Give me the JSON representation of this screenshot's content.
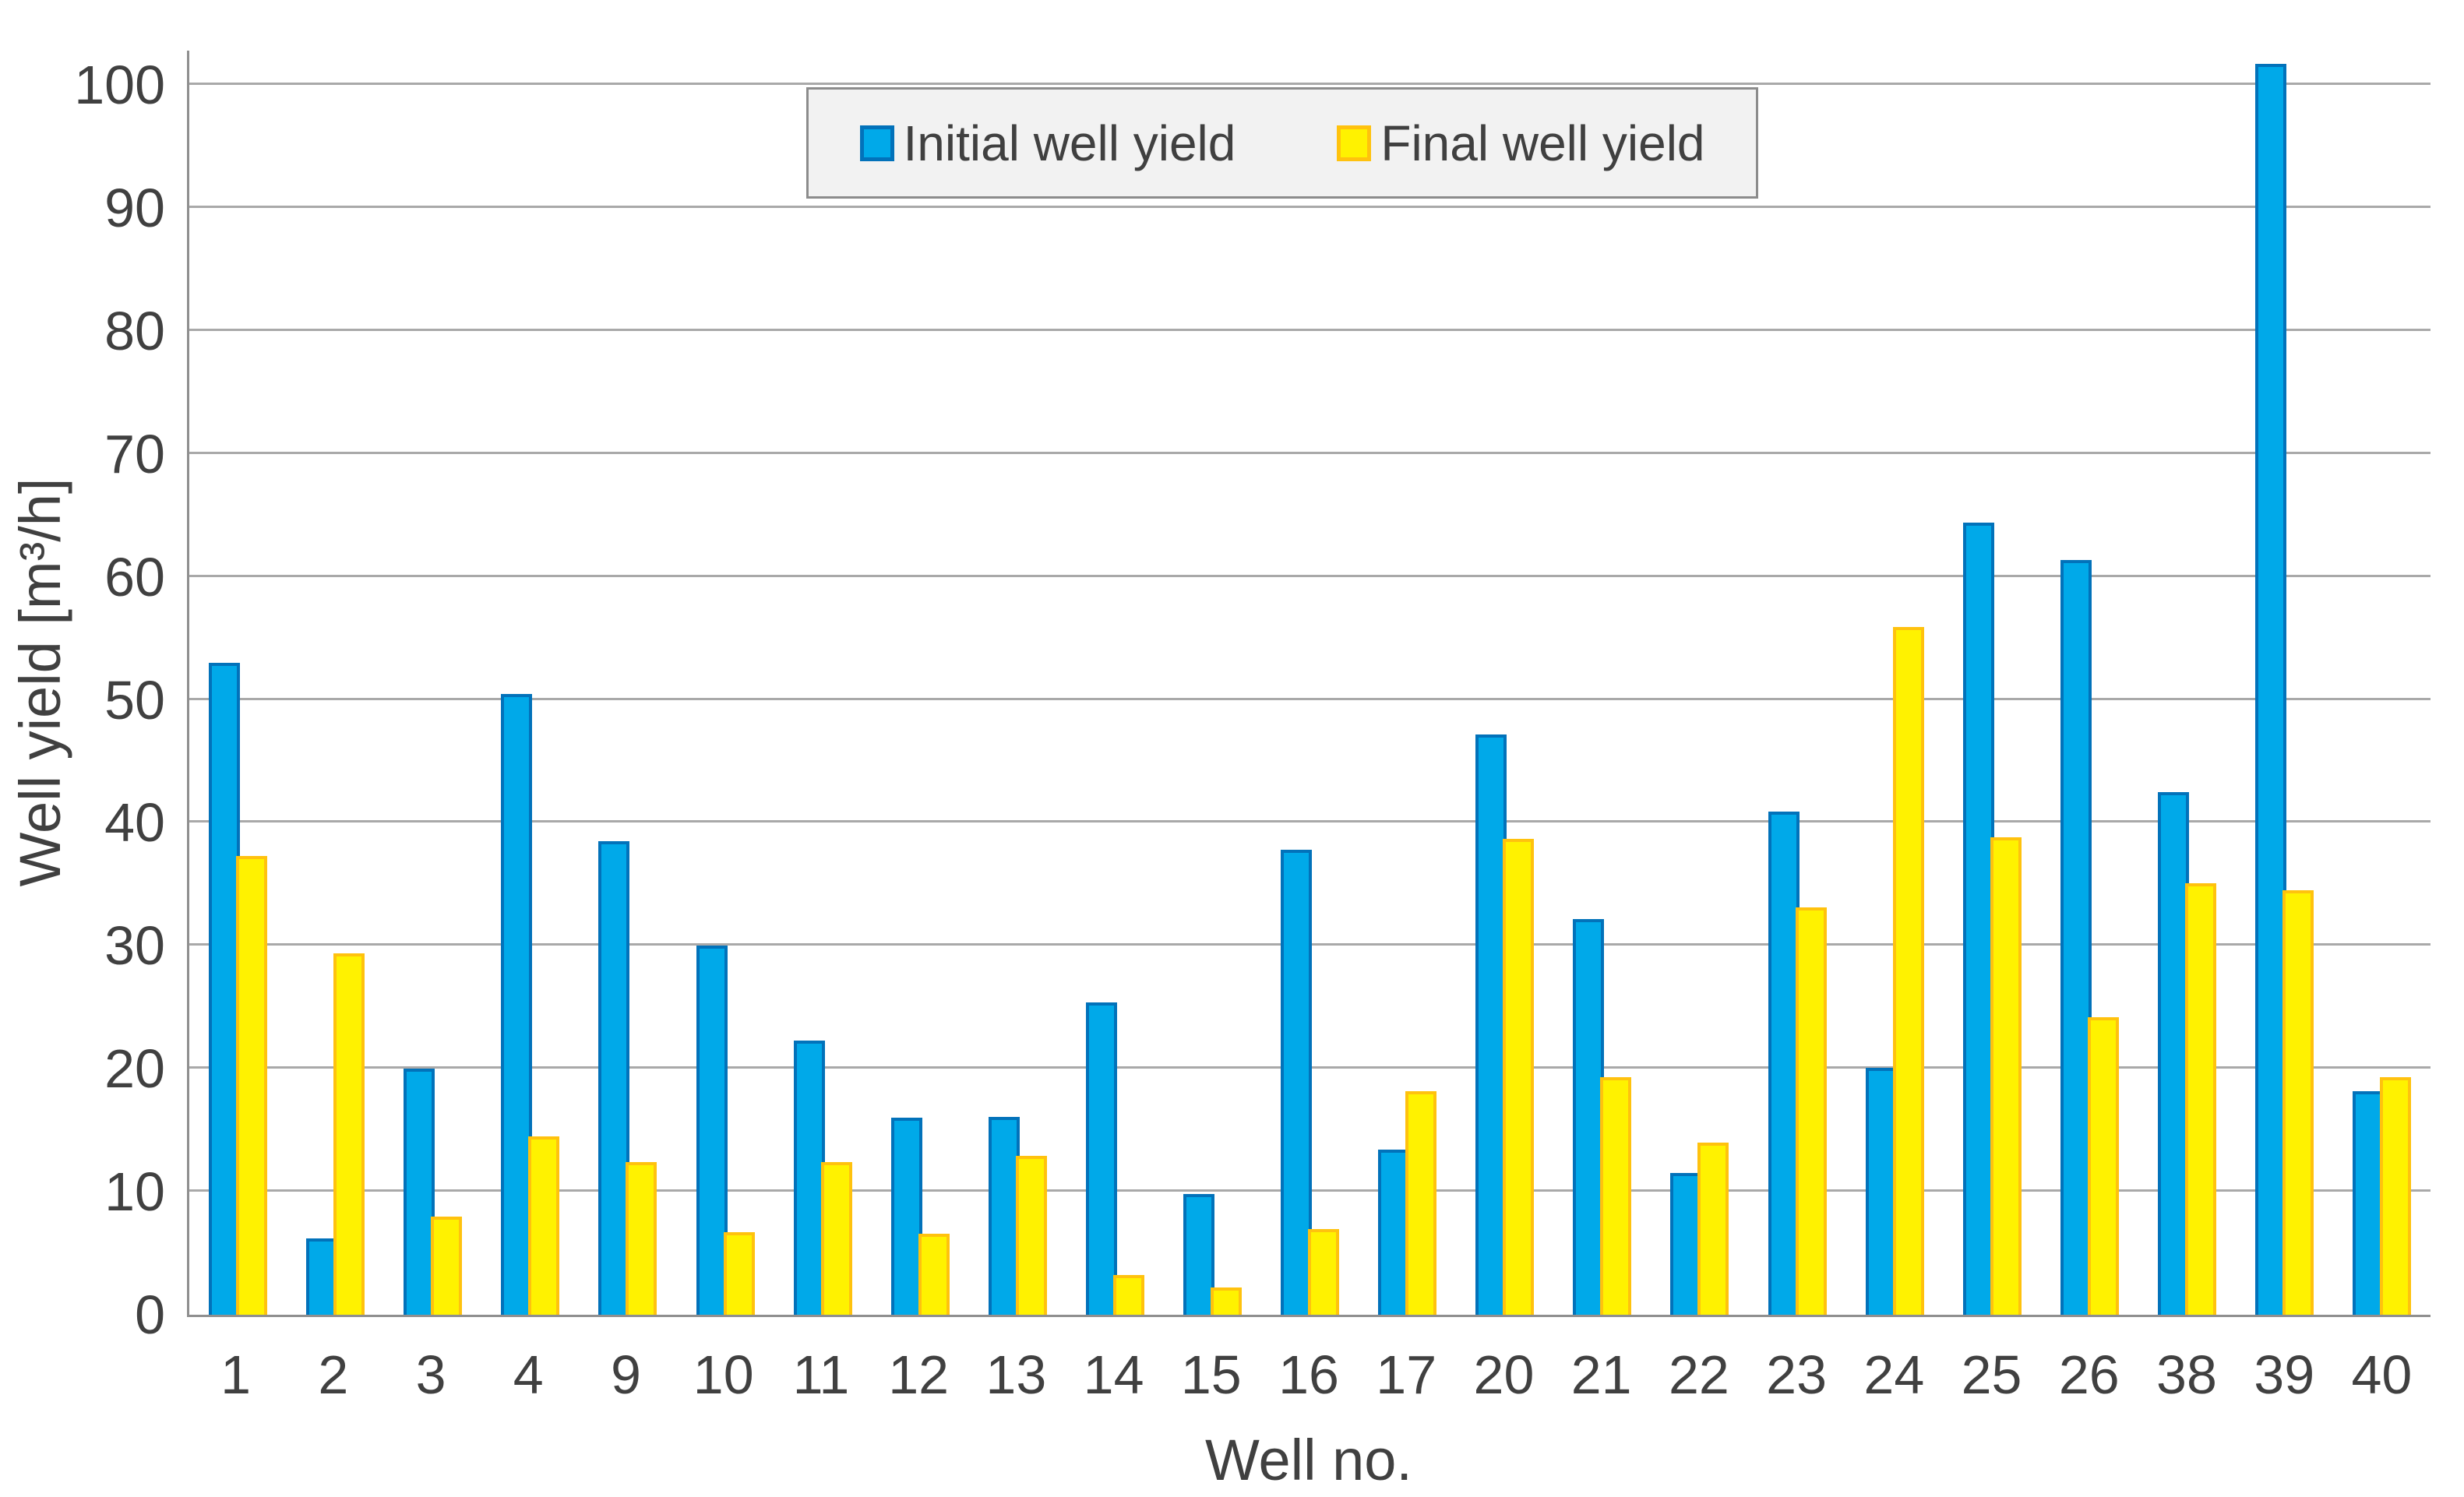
{
  "chart_data": {
    "type": "bar",
    "title": "",
    "xlabel": "Well no.",
    "ylabel": "Well yield [m³/h]",
    "ylim": [
      0,
      100
    ],
    "y_ticks": [
      0,
      10,
      20,
      30,
      40,
      50,
      60,
      70,
      80,
      90,
      100
    ],
    "grid": "horizontal-only",
    "legend_position": "top-center",
    "categories": [
      "1",
      "2",
      "3",
      "4",
      "9",
      "10",
      "11",
      "12",
      "13",
      "14",
      "15",
      "16",
      "17",
      "20",
      "21",
      "22",
      "23",
      "24",
      "25",
      "26",
      "38",
      "39",
      "40"
    ],
    "series": [
      {
        "name": "Initial well yield",
        "fill": "#00a9e9",
        "border": "#0272ba",
        "values": [
          53.0,
          6.2,
          20.0,
          50.5,
          38.5,
          30.0,
          22.3,
          16.0,
          16.1,
          25.4,
          9.8,
          37.8,
          13.4,
          47.2,
          32.2,
          11.5,
          40.9,
          20.1,
          64.4,
          61.4,
          42.5,
          101.7,
          18.2
        ]
      },
      {
        "name": "Final well yield",
        "fill": "#fff200",
        "border": "#ffc20e",
        "values": [
          37.3,
          29.4,
          8.0,
          14.5,
          12.4,
          6.7,
          12.4,
          6.6,
          12.9,
          3.2,
          2.2,
          7.0,
          18.2,
          38.7,
          19.3,
          14.0,
          33.1,
          55.9,
          38.8,
          24.2,
          35.1,
          34.5,
          19.3
        ]
      }
    ]
  },
  "colors": {
    "background": "#ffffff",
    "gridline": "#a9a9a9",
    "axis_line": "#8f8f8f",
    "text": "#404040",
    "legend_background": "#f2f2f2",
    "legend_border": "#8c8c8c"
  }
}
